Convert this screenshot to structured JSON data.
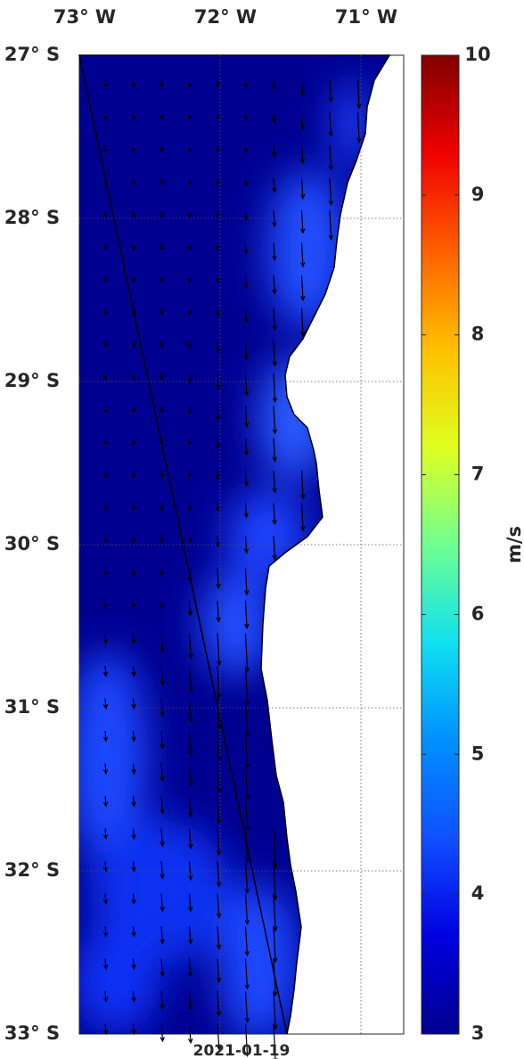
{
  "map": {
    "lon_ticks": [
      {
        "value": -73,
        "label": "73° W"
      },
      {
        "value": -72,
        "label": "72° W"
      },
      {
        "value": -71,
        "label": "71° W"
      }
    ],
    "lat_ticks": [
      {
        "value": -27,
        "label": "27° S"
      },
      {
        "value": -28,
        "label": "28° S"
      },
      {
        "value": -29,
        "label": "29° S"
      },
      {
        "value": -30,
        "label": "30° S"
      },
      {
        "value": -31,
        "label": "31° S"
      },
      {
        "value": -32,
        "label": "32° S"
      },
      {
        "value": -33,
        "label": "33° S"
      }
    ],
    "date": "2021-01-19"
  },
  "colorbar": {
    "label": "m/s",
    "clim": [
      3,
      10
    ],
    "ticks": [
      3,
      4,
      5,
      6,
      7,
      8,
      9,
      10
    ]
  }
}
